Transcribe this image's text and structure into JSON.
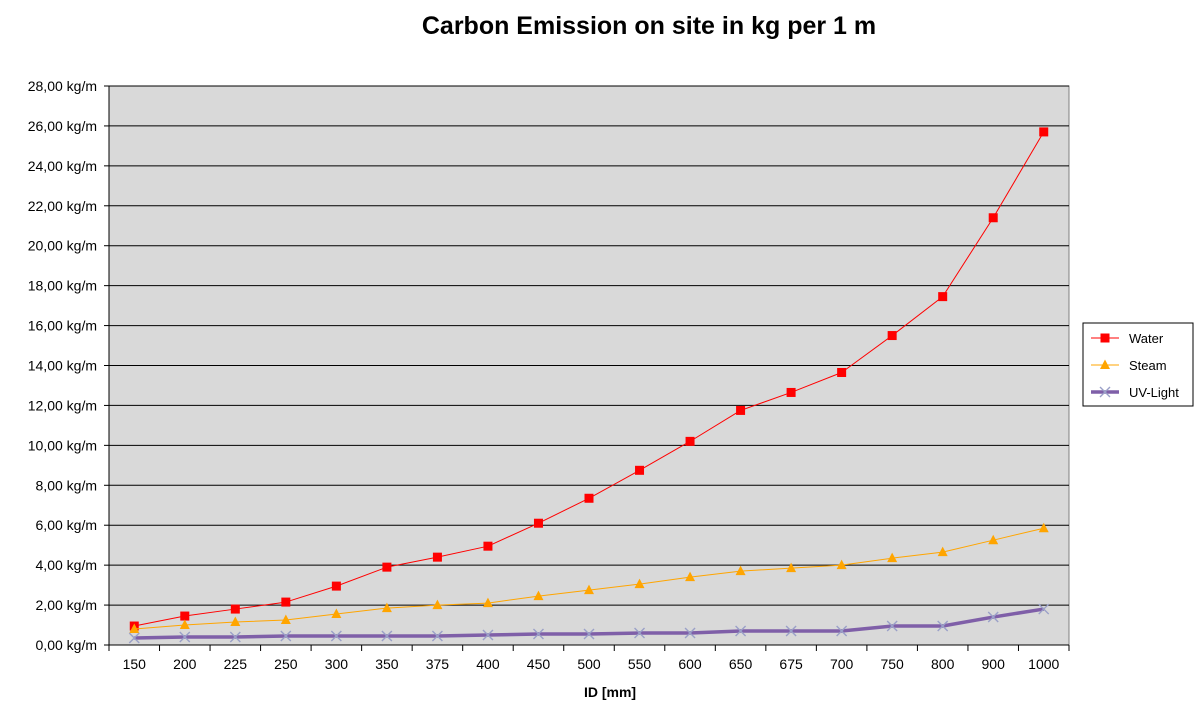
{
  "chart_data": {
    "type": "line",
    "title": "Carbon Emission on site in kg per 1 m",
    "xlabel": "ID [mm]",
    "ylabel": "",
    "categories": [
      "150",
      "200",
      "225",
      "250",
      "300",
      "350",
      "375",
      "400",
      "450",
      "500",
      "550",
      "600",
      "650",
      "675",
      "700",
      "750",
      "800",
      "900",
      "1000"
    ],
    "ylim": [
      0,
      28
    ],
    "ytick_step": 2,
    "ytick_labels": [
      "0,00 kg/m",
      "2,00 kg/m",
      "4,00 kg/m",
      "6,00 kg/m",
      "8,00 kg/m",
      "10,00 kg/m",
      "12,00 kg/m",
      "14,00 kg/m",
      "16,00 kg/m",
      "18,00 kg/m",
      "20,00 kg/m",
      "22,00 kg/m",
      "24,00 kg/m",
      "26,00 kg/m",
      "28,00 kg/m"
    ],
    "grid": true,
    "plot_background": "#d9d9d9",
    "legend_position": "right",
    "series": [
      {
        "name": "Water",
        "color": "#ff0000",
        "marker": "square",
        "values": [
          0.95,
          1.45,
          1.8,
          2.15,
          2.95,
          3.9,
          4.4,
          4.95,
          6.1,
          7.35,
          8.75,
          10.2,
          11.75,
          12.65,
          13.65,
          15.5,
          17.45,
          21.4,
          25.7
        ]
      },
      {
        "name": "Steam",
        "color": "#ffa500",
        "marker": "triangle",
        "values": [
          0.8,
          1.0,
          1.15,
          1.25,
          1.55,
          1.85,
          2.0,
          2.1,
          2.45,
          2.75,
          3.05,
          3.4,
          3.7,
          3.85,
          4.0,
          4.35,
          4.65,
          5.25,
          5.85
        ]
      },
      {
        "name": "UV-Light",
        "color": "#7f5fa8",
        "marker": "x",
        "values": [
          0.35,
          0.4,
          0.4,
          0.45,
          0.45,
          0.45,
          0.45,
          0.5,
          0.55,
          0.55,
          0.6,
          0.6,
          0.7,
          0.7,
          0.7,
          0.95,
          0.95,
          1.4,
          1.8
        ]
      }
    ]
  }
}
